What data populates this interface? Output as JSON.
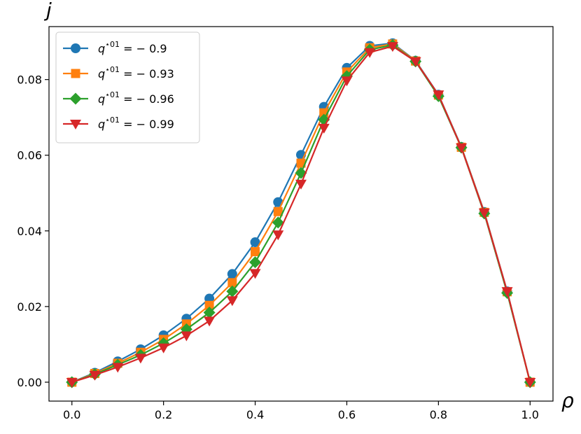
{
  "chart_data": {
    "type": "line",
    "xlabel": "ρ",
    "ylabel": "j",
    "xlim": [
      -0.05,
      1.05
    ],
    "ylim": [
      -0.005,
      0.094
    ],
    "xticks": [
      "0.0",
      "0.2",
      "0.4",
      "0.6",
      "0.8",
      "1.0"
    ],
    "yticks": [
      "0.00",
      "0.02",
      "0.04",
      "0.06",
      "0.08"
    ],
    "grid": false,
    "legend_position": "top-left",
    "x": [
      0.0,
      0.05,
      0.1,
      0.15,
      0.2,
      0.25,
      0.3,
      0.35,
      0.4,
      0.45,
      0.5,
      0.55,
      0.6,
      0.65,
      0.7,
      0.75,
      0.8,
      0.85,
      0.9,
      0.95,
      1.0
    ],
    "series": [
      {
        "name": "q^{*01} = −0.9",
        "name_parts": {
          "base": "q",
          "sup": "⋆01",
          "rest": " = − 0.9"
        },
        "color": "#1f77b4",
        "marker": "circle",
        "values": [
          0.0,
          0.0025,
          0.0055,
          0.0087,
          0.0124,
          0.0168,
          0.0221,
          0.0286,
          0.037,
          0.0476,
          0.0601,
          0.0728,
          0.0831,
          0.0889,
          0.0896,
          0.085,
          0.076,
          0.0622,
          0.045,
          0.024,
          0.0
        ]
      },
      {
        "name": "q^{*01} = −0.93",
        "name_parts": {
          "base": "q",
          "sup": "⋆01",
          "rest": " = − 0.93"
        },
        "color": "#ff7f0e",
        "marker": "square",
        "values": [
          0.0,
          0.0023,
          0.005,
          0.0079,
          0.0113,
          0.0154,
          0.0203,
          0.0263,
          0.0345,
          0.0451,
          0.0579,
          0.0712,
          0.082,
          0.0884,
          0.0894,
          0.0849,
          0.0759,
          0.0621,
          0.0449,
          0.0239,
          0.0
        ]
      },
      {
        "name": "q^{*01} = −0.96",
        "name_parts": {
          "base": "q",
          "sup": "⋆01",
          "rest": " = − 0.96"
        },
        "color": "#2ca02c",
        "marker": "diamond",
        "values": [
          0.0,
          0.0021,
          0.0046,
          0.0072,
          0.0103,
          0.014,
          0.0184,
          0.024,
          0.0317,
          0.0422,
          0.0553,
          0.0694,
          0.0809,
          0.0879,
          0.0891,
          0.0848,
          0.0756,
          0.062,
          0.0446,
          0.0236,
          0.0
        ]
      },
      {
        "name": "q^{*01} = −0.99",
        "name_parts": {
          "base": "q",
          "sup": "⋆01",
          "rest": " = − 0.99"
        },
        "color": "#d62728",
        "marker": "triangle-down",
        "values": [
          0.0,
          0.0019,
          0.004,
          0.0064,
          0.0091,
          0.0123,
          0.0162,
          0.0216,
          0.0288,
          0.039,
          0.0524,
          0.0672,
          0.0797,
          0.0872,
          0.0888,
          0.0848,
          0.076,
          0.062,
          0.0448,
          0.024,
          0.0
        ]
      }
    ]
  }
}
